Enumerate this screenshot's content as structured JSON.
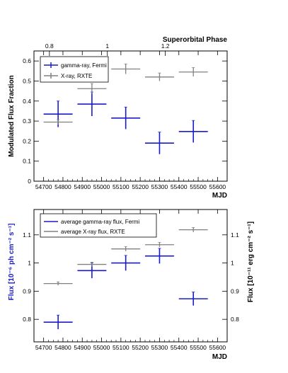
{
  "chart_data": [
    {
      "type": "scatter",
      "xlabel": "MJD",
      "ylabel": "Modulated Flux Fraction",
      "top_axis_label": "Superorbital Phase",
      "top_ticks": [
        "0.8",
        "1",
        "1.2"
      ],
      "top_tick_values": [
        0.8,
        1.0,
        1.2
      ],
      "phase_at_mjd": [
        [
          54700,
          0.78
        ],
        [
          55600,
          1.38
        ]
      ],
      "xlim": [
        54650,
        55650
      ],
      "ylim": [
        0,
        0.65
      ],
      "xticks": [
        "54700",
        "54800",
        "54900",
        "55000",
        "55100",
        "55200",
        "55300",
        "55400",
        "55500",
        "55600"
      ],
      "yticks": [
        "0",
        "0.1",
        "0.2",
        "0.3",
        "0.4",
        "0.5",
        "0.6"
      ],
      "legend_position": "top-left",
      "grid": false,
      "series": [
        {
          "name": "gamma-ray, Fermi",
          "color": "#1a1acc",
          "points": [
            {
              "x": 54775,
              "xerr": 75,
              "y": 0.335,
              "yerr": 0.065
            },
            {
              "x": 54950,
              "xerr": 75,
              "y": 0.385,
              "yerr": 0.06
            },
            {
              "x": 55125,
              "xerr": 75,
              "y": 0.315,
              "yerr": 0.055
            },
            {
              "x": 55300,
              "xerr": 75,
              "y": 0.19,
              "yerr": 0.055
            },
            {
              "x": 55475,
              "xerr": 75,
              "y": 0.248,
              "yerr": 0.055
            }
          ]
        },
        {
          "name": "X-ray, RXTE",
          "color": "#808080",
          "points": [
            {
              "x": 54775,
              "xerr": 75,
              "y": 0.295,
              "yerr": 0.012
            },
            {
              "x": 54950,
              "xerr": 75,
              "y": 0.462,
              "yerr": 0.025
            },
            {
              "x": 55125,
              "xerr": 75,
              "y": 0.56,
              "yerr": 0.025
            },
            {
              "x": 55300,
              "xerr": 75,
              "y": 0.52,
              "yerr": 0.02
            },
            {
              "x": 55475,
              "xerr": 75,
              "y": 0.545,
              "yerr": 0.022
            }
          ]
        }
      ]
    },
    {
      "type": "scatter",
      "xlabel": "MJD",
      "ylabel": "Flux [10⁻⁶ ph cm⁻² s⁻¹]",
      "ylabel_right": "Flux [10⁻¹¹ erg cm⁻² s⁻¹]",
      "xlim": [
        54650,
        55650
      ],
      "ylim": [
        0.72,
        1.19
      ],
      "xticks": [
        "54700",
        "54800",
        "54900",
        "55000",
        "55100",
        "55200",
        "55300",
        "55400",
        "55500",
        "55600"
      ],
      "yticks": [
        "0.8",
        "0.9",
        "1",
        "1.1"
      ],
      "yticks_right": [
        "0.8",
        "0.9",
        "1",
        "1.1"
      ],
      "legend_position": "top-left",
      "grid": false,
      "series": [
        {
          "name": "average gamma-ray flux, Fermi",
          "color": "#1a1acc",
          "points": [
            {
              "x": 54775,
              "xerr": 75,
              "y": 0.79,
              "yerr": 0.025
            },
            {
              "x": 54950,
              "xerr": 75,
              "y": 0.973,
              "yerr": 0.027
            },
            {
              "x": 55125,
              "xerr": 75,
              "y": 1.0,
              "yerr": 0.027
            },
            {
              "x": 55300,
              "xerr": 75,
              "y": 1.025,
              "yerr": 0.027
            },
            {
              "x": 55475,
              "xerr": 75,
              "y": 0.873,
              "yerr": 0.024
            }
          ]
        },
        {
          "name": "average X-ray flux, RXTE",
          "color": "#808080",
          "points": [
            {
              "x": 54775,
              "xerr": 75,
              "y": 0.927,
              "yerr": 0.006
            },
            {
              "x": 54950,
              "xerr": 75,
              "y": 0.995,
              "yerr": 0.008
            },
            {
              "x": 55125,
              "xerr": 75,
              "y": 1.05,
              "yerr": 0.008
            },
            {
              "x": 55300,
              "xerr": 75,
              "y": 1.065,
              "yerr": 0.008
            },
            {
              "x": 55475,
              "xerr": 75,
              "y": 1.118,
              "yerr": 0.008
            }
          ]
        }
      ]
    }
  ]
}
